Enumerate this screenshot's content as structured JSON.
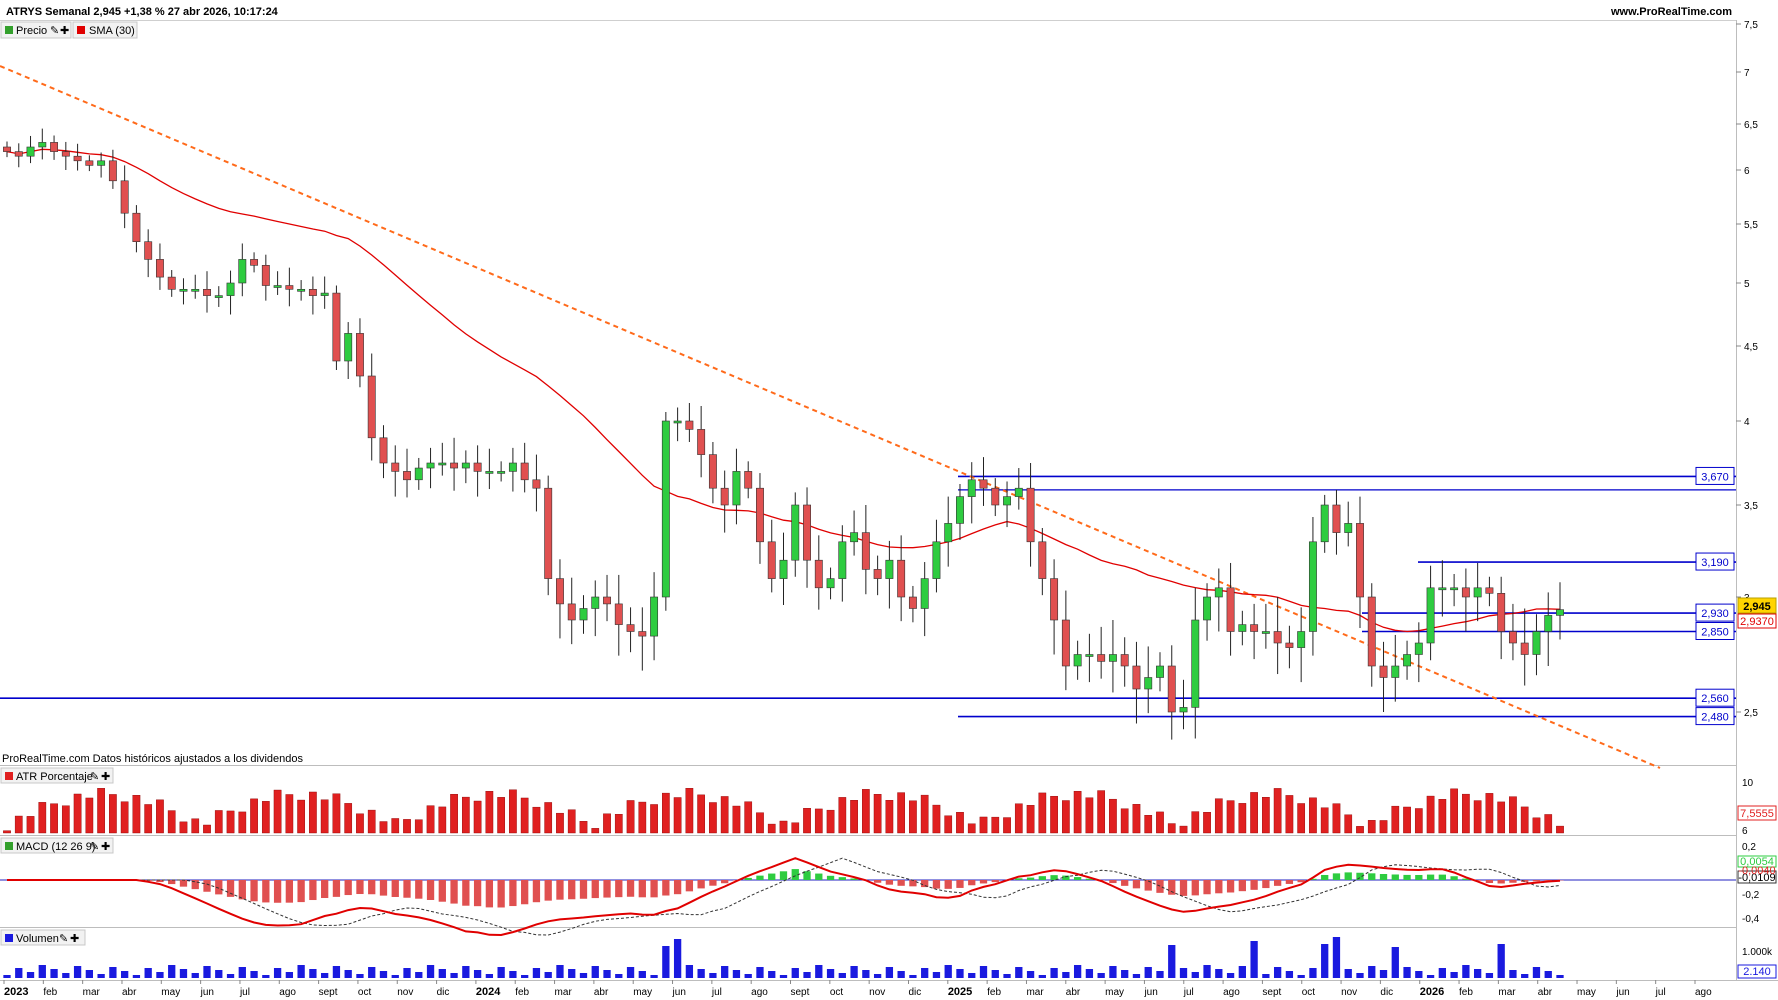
{
  "header": {
    "title": "ATRYS Semanal 2,945 +1,38 % 27 abr 2026, 10:17:24",
    "site": "www.ProRealTime.com"
  },
  "price_panel": {
    "legend": [
      {
        "label": "Precio",
        "color": "#33a02c"
      },
      {
        "label": "SMA (30)",
        "color": "#e00000"
      }
    ],
    "note": "ProRealTime.com Datos históricos ajustados a los dividendos",
    "axis_ticks": [
      "7,5",
      "7",
      "6,5",
      "6",
      "5,5",
      "5",
      "4,5",
      "4",
      "3,5",
      "3",
      "2,5"
    ],
    "levels": [
      {
        "label": "3,670"
      },
      {
        "label": "3,190"
      },
      {
        "label": "2,930"
      },
      {
        "label": "2,850"
      },
      {
        "label": "2,560"
      },
      {
        "label": "2,480"
      }
    ],
    "last_price_tag": "2,945",
    "sma_tag": "2,9370"
  },
  "atr_panel": {
    "label": "ATR Porcentaje",
    "axis_ticks": [
      "10",
      "8",
      "6"
    ],
    "value_tag": "7,5555"
  },
  "macd_panel": {
    "label": "MACD (12 26 9)",
    "axis_ticks": [
      "0,2",
      "-0,2",
      "-0,4"
    ],
    "value_tag_top": "0,0054",
    "value_tag_mid": "-0,0109",
    "value_tag_bottom": "-0,0040"
  },
  "volume_panel": {
    "label": "Volumen",
    "axis_ticks": [
      "1.000k"
    ],
    "value_tag": "2.140"
  },
  "time_axis": [
    "2023",
    "feb",
    "mar",
    "abr",
    "may",
    "jun",
    "jul",
    "ago",
    "sept",
    "oct",
    "nov",
    "dic",
    "2024",
    "feb",
    "mar",
    "abr",
    "may",
    "jun",
    "jul",
    "ago",
    "sept",
    "oct",
    "nov",
    "dic",
    "2025",
    "feb",
    "mar",
    "abr",
    "may",
    "jun",
    "jul",
    "ago",
    "sept",
    "oct",
    "nov",
    "dic",
    "2026",
    "feb",
    "mar",
    "abr",
    "may",
    "jun",
    "jul",
    "ago"
  ],
  "colors": {
    "up": "#2ecc40",
    "down": "#e05050",
    "sma": "#e00000",
    "level": "#0000cc",
    "trend": "#ff6a1a",
    "atr": "#e02020",
    "volume": "#1a1adf"
  },
  "chart_data": {
    "type": "candlestick",
    "symbol": "ATRYS",
    "timeframe": "Semanal",
    "ohlc_close_approx": [
      6.2,
      6.15,
      6.25,
      6.3,
      6.2,
      6.15,
      6.1,
      6.05,
      6.1,
      5.9,
      5.6,
      5.35,
      5.2,
      5.05,
      4.95,
      4.95,
      4.95,
      4.9,
      4.9,
      5.0,
      5.2,
      5.15,
      4.98,
      4.98,
      4.95,
      4.95,
      4.9,
      4.92,
      4.4,
      4.6,
      4.3,
      3.9,
      3.75,
      3.7,
      3.65,
      3.72,
      3.75,
      3.75,
      3.72,
      3.75,
      3.7,
      3.7,
      3.7,
      3.75,
      3.65,
      3.6,
      3.1,
      2.97,
      2.9,
      2.95,
      3.0,
      2.97,
      2.88,
      2.85,
      2.83,
      3.0,
      4.0,
      4.0,
      3.95,
      3.8,
      3.6,
      3.5,
      3.7,
      3.6,
      3.3,
      3.1,
      3.2,
      3.5,
      3.2,
      3.05,
      3.1,
      3.3,
      3.35,
      3.15,
      3.1,
      3.2,
      3.0,
      2.95,
      3.1,
      3.3,
      3.4,
      3.55,
      3.65,
      3.6,
      3.5,
      3.55,
      3.6,
      3.3,
      3.1,
      2.9,
      2.7,
      2.75,
      2.75,
      2.72,
      2.75,
      2.7,
      2.6,
      2.65,
      2.7,
      2.5,
      2.52,
      2.9,
      3.0,
      3.05,
      2.85,
      2.88,
      2.85,
      2.85,
      2.8,
      2.78,
      2.85,
      3.3,
      3.5,
      3.35,
      3.4,
      3.0,
      2.7,
      2.65,
      2.7,
      2.75,
      2.8,
      3.05,
      3.05,
      3.05,
      3.0,
      3.05,
      3.02,
      2.85,
      2.8,
      2.75,
      2.85,
      2.92,
      2.945
    ],
    "sma30_approx_end": 2.937,
    "levels": [
      3.67,
      3.19,
      2.93,
      2.85,
      2.56,
      2.48
    ],
    "last_price": 2.945,
    "y_range": [
      2.4,
      7.5
    ]
  }
}
